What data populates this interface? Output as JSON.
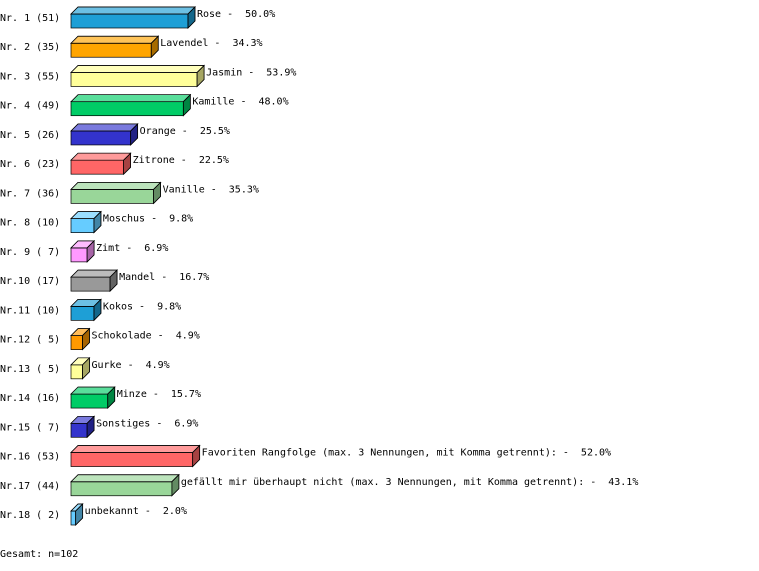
{
  "chart_data": {
    "type": "bar3d",
    "separator": "-",
    "row_labels": [
      "Nr. 1 (51)",
      "Nr. 2 (35)",
      "Nr. 3 (55)",
      "Nr. 4 (49)",
      "Nr. 5 (26)",
      "Nr. 6 (23)",
      "Nr. 7 (36)",
      "Nr. 8 (10)",
      "Nr. 9 ( 7)",
      "Nr.10 (17)",
      "Nr.11 (10)",
      "Nr.12 ( 5)",
      "Nr.13 ( 5)",
      "Nr.14 (16)",
      "Nr.15 ( 7)",
      "Nr.16 (53)",
      "Nr.17 (44)",
      "Nr.18 ( 2)"
    ],
    "categories": [
      "Rose",
      "Lavendel",
      "Jasmin",
      "Kamille",
      "Orange",
      "Zitrone",
      "Vanille",
      "Moschus",
      "Zimt",
      "Mandel",
      "Kokos",
      "Schokolade",
      "Gurke",
      "Minze",
      "Sonstiges",
      "Favoriten Rangfolge (max. 3 Nennungen, mit Komma getrennt):",
      "gefällt mir überhaupt nicht (max. 3 Nennungen, mit Komma getrennt):",
      "unbekannt"
    ],
    "values": [
      50.0,
      34.3,
      53.9,
      48.0,
      25.5,
      22.5,
      35.3,
      9.8,
      6.9,
      16.7,
      9.8,
      4.9,
      4.9,
      15.7,
      6.9,
      52.0,
      43.1,
      2.0
    ],
    "value_labels": [
      "50.0%",
      "34.3%",
      "53.9%",
      "48.0%",
      "25.5%",
      "22.5%",
      "35.3%",
      "9.8%",
      "6.9%",
      "16.7%",
      "9.8%",
      "4.9%",
      "4.9%",
      "15.7%",
      "6.9%",
      "52.0%",
      "43.1%",
      "2.0%"
    ],
    "colors": [
      "#1e9fd6",
      "#ffa500",
      "#ffff99",
      "#00cc66",
      "#3333cc",
      "#ff6666",
      "#99d699",
      "#66ccff",
      "#ff99ff",
      "#999999",
      "#1e9fd6",
      "#ff9900",
      "#ffff99",
      "#00cc66",
      "#3333cc",
      "#ff6666",
      "#99d699",
      "#66ccff"
    ],
    "footer": "Gesamt: n=102"
  }
}
